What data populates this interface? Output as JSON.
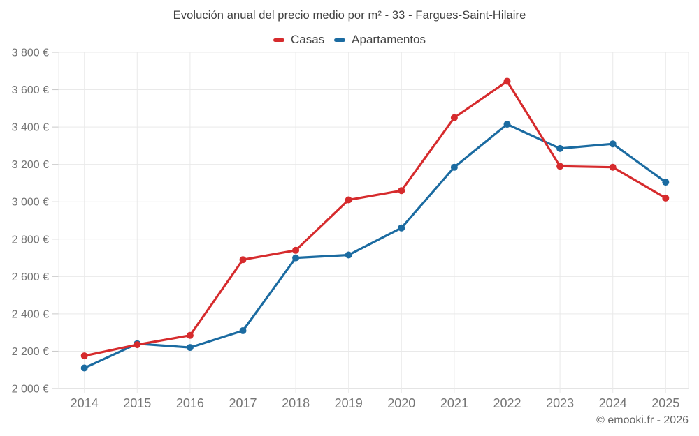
{
  "page": {
    "background": "#ffffff"
  },
  "header": {
    "title": "Evolución anual del precio medio por m² - 33 - Fargues-Saint-Hilaire"
  },
  "legend": {
    "items": [
      {
        "label": "Casas",
        "color": "#d62b2d"
      },
      {
        "label": "Apartamentos",
        "color": "#1b6ba1"
      }
    ]
  },
  "footer": {
    "attribution": "© emooki.fr - 2026"
  },
  "colors": {
    "casas": "#d62b2d",
    "apartamentos": "#1b6ba1",
    "grid": "#e9e9e9",
    "axis": "#c9c9c9",
    "tick_label": "#757575"
  },
  "chart_data": {
    "type": "line",
    "title": "Evolución anual del precio medio por m² - 33 - Fargues-Saint-Hilaire",
    "xlabel": "",
    "ylabel": "",
    "currency": "€",
    "grid": true,
    "legend_position": "top",
    "categories": [
      "2014",
      "2015",
      "2016",
      "2017",
      "2018",
      "2019",
      "2020",
      "2021",
      "2022",
      "2023",
      "2024",
      "2025"
    ],
    "series": [
      {
        "name": "Casas",
        "color": "#d62b2d",
        "values": [
          2175,
          2235,
          2285,
          2690,
          2740,
          3010,
          3060,
          3450,
          3645,
          3190,
          3185,
          3020
        ]
      },
      {
        "name": "Apartamentos",
        "color": "#1b6ba1",
        "values": [
          2110,
          2240,
          2220,
          2310,
          2700,
          2715,
          2860,
          3185,
          3415,
          3285,
          3310,
          3105
        ]
      }
    ],
    "ylim": [
      2000,
      3800
    ],
    "y_ticks": [
      2000,
      2200,
      2400,
      2600,
      2800,
      3000,
      3200,
      3400,
      3600,
      3800
    ],
    "y_tick_labels": [
      "2 000 €",
      "2 200 €",
      "2 400 €",
      "2 600 €",
      "2 800 €",
      "3 000 €",
      "3 200 €",
      "3 400 €",
      "3 600 €",
      "3 800 €"
    ]
  }
}
